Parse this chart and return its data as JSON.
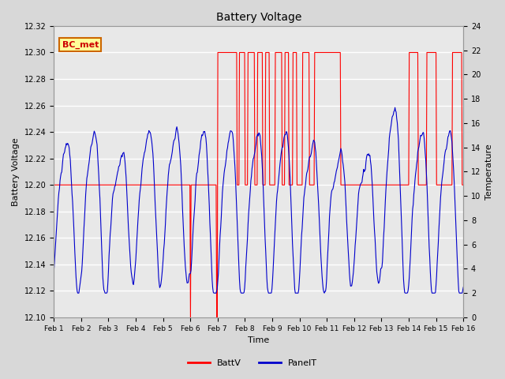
{
  "title": "Battery Voltage",
  "xlabel": "Time",
  "ylabel_left": "Battery Voltage",
  "ylabel_right": "Temperature",
  "ylim_left": [
    12.1,
    12.32
  ],
  "ylim_right": [
    0,
    24
  ],
  "xtick_labels": [
    "Feb 1",
    "Feb 2",
    "Feb 3",
    "Feb 4",
    "Feb 5",
    "Feb 6",
    "Feb 7",
    "Feb 8",
    "Feb 9",
    "Feb 10",
    "Feb 11",
    "Feb 12",
    "Feb 13",
    "Feb 14",
    "Feb 15",
    "Feb 16"
  ],
  "bg_color": "#d8d8d8",
  "plot_bg": "#e8e8e8",
  "grid_color": "#ffffff",
  "batt_color": "#ff0000",
  "panel_color": "#0000cc",
  "annotation_text": "BC_met",
  "annotation_bg": "#ffff99",
  "annotation_border": "#cc6600",
  "batt_v_flat": 12.2,
  "batt_v_high": 12.3,
  "batt_v_low_spike": 12.1,
  "temp_scale_min": 0,
  "temp_scale_max": 24,
  "volt_scale_min": 12.1,
  "volt_scale_max": 12.32
}
